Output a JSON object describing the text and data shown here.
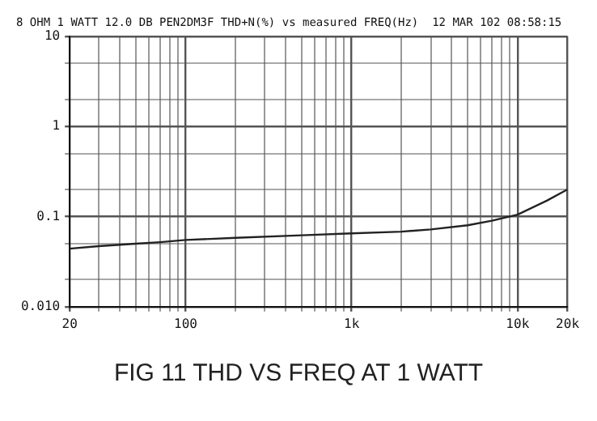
{
  "chart_data": {
    "type": "line",
    "title": "8 OHM 1 WATT 12.0 DB PEN2DM3F THD+N(%) vs measured FREQ(Hz)  12 MAR 102 08:58:15",
    "annotations": [
      "FIG 11   THD VS FREQ AT 1 WATT"
    ],
    "x": [
      20,
      30,
      50,
      70,
      100,
      200,
      500,
      1000,
      2000,
      3000,
      5000,
      7000,
      10000,
      15000,
      20000
    ],
    "series": [
      {
        "color": "#222222",
        "values": [
          0.044,
          0.047,
          0.05,
          0.052,
          0.055,
          0.058,
          0.062,
          0.065,
          0.068,
          0.072,
          0.08,
          0.09,
          0.105,
          0.15,
          0.2
        ]
      }
    ],
    "log": "xy",
    "xlim": [
      20,
      20000
    ],
    "ylim": [
      0.01,
      10
    ],
    "xticks": [
      20,
      {
        "value": 30,
        "label": null
      },
      {
        "value": 40,
        "label": null
      },
      {
        "value": 50,
        "label": null
      },
      {
        "value": 60,
        "label": null
      },
      {
        "value": 70,
        "label": null
      },
      {
        "value": 80,
        "label": null
      },
      {
        "value": 90,
        "label": null
      },
      100,
      {
        "value": 200,
        "label": null
      },
      {
        "value": 300,
        "label": null
      },
      {
        "value": 400,
        "label": null
      },
      {
        "value": 500,
        "label": null
      },
      {
        "value": 600,
        "label": null
      },
      {
        "value": 700,
        "label": null
      },
      {
        "value": 800,
        "label": null
      },
      {
        "value": 900,
        "label": null
      },
      {
        "value": 1000,
        "label": "1k"
      },
      {
        "value": 2000,
        "label": null
      },
      {
        "value": 3000,
        "label": null
      },
      {
        "value": 4000,
        "label": null
      },
      {
        "value": 5000,
        "label": null
      },
      {
        "value": 6000,
        "label": null
      },
      {
        "value": 7000,
        "label": null
      },
      {
        "value": 8000,
        "label": null
      },
      {
        "value": 9000,
        "label": null
      },
      {
        "value": 10000,
        "label": "10k"
      },
      {
        "value": 20000,
        "label": "20k"
      }
    ],
    "yticks": [
      {
        "value": 0.01,
        "label": "0.010"
      },
      {
        "value": 0.02,
        "label": null
      },
      {
        "value": 0.05,
        "label": null
      },
      0.1,
      {
        "value": 0.2,
        "label": null
      },
      {
        "value": 0.5,
        "label": null
      },
      1,
      {
        "value": 2,
        "label": null
      },
      {
        "value": 5,
        "label": null
      },
      10
    ],
    "grid": true,
    "legend": false,
    "marker": "none",
    "line_style": "solid"
  }
}
